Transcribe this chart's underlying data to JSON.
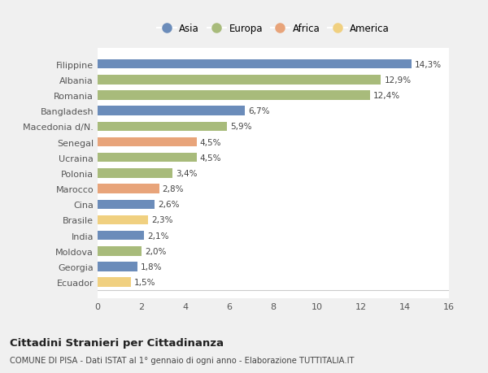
{
  "categories": [
    "Filippine",
    "Albania",
    "Romania",
    "Bangladesh",
    "Macedonia d/N.",
    "Senegal",
    "Ucraina",
    "Polonia",
    "Marocco",
    "Cina",
    "Brasile",
    "India",
    "Moldova",
    "Georgia",
    "Ecuador"
  ],
  "values": [
    14.3,
    12.9,
    12.4,
    6.7,
    5.9,
    4.5,
    4.5,
    3.4,
    2.8,
    2.6,
    2.3,
    2.1,
    2.0,
    1.8,
    1.5
  ],
  "labels": [
    "14,3%",
    "12,9%",
    "12,4%",
    "6,7%",
    "5,9%",
    "4,5%",
    "4,5%",
    "3,4%",
    "2,8%",
    "2,6%",
    "2,3%",
    "2,1%",
    "2,0%",
    "1,8%",
    "1,5%"
  ],
  "continents": [
    "Asia",
    "Europa",
    "Europa",
    "Asia",
    "Europa",
    "Africa",
    "Europa",
    "Europa",
    "Africa",
    "Asia",
    "America",
    "Asia",
    "Europa",
    "Asia",
    "America"
  ],
  "colors": {
    "Asia": "#6b8cba",
    "Europa": "#a8bb7b",
    "Africa": "#e8a47a",
    "America": "#f0d080"
  },
  "legend_labels": [
    "Asia",
    "Europa",
    "Africa",
    "America"
  ],
  "title": "Cittadini Stranieri per Cittadinanza",
  "subtitle": "COMUNE DI PISA - Dati ISTAT al 1° gennaio di ogni anno - Elaborazione TUTTITALIA.IT",
  "xlim": [
    0,
    16
  ],
  "xticks": [
    0,
    2,
    4,
    6,
    8,
    10,
    12,
    14,
    16
  ],
  "background_color": "#f0f0f0",
  "plot_bg_color": "#ffffff",
  "grid_color": "#ffffff",
  "bar_height": 0.6
}
